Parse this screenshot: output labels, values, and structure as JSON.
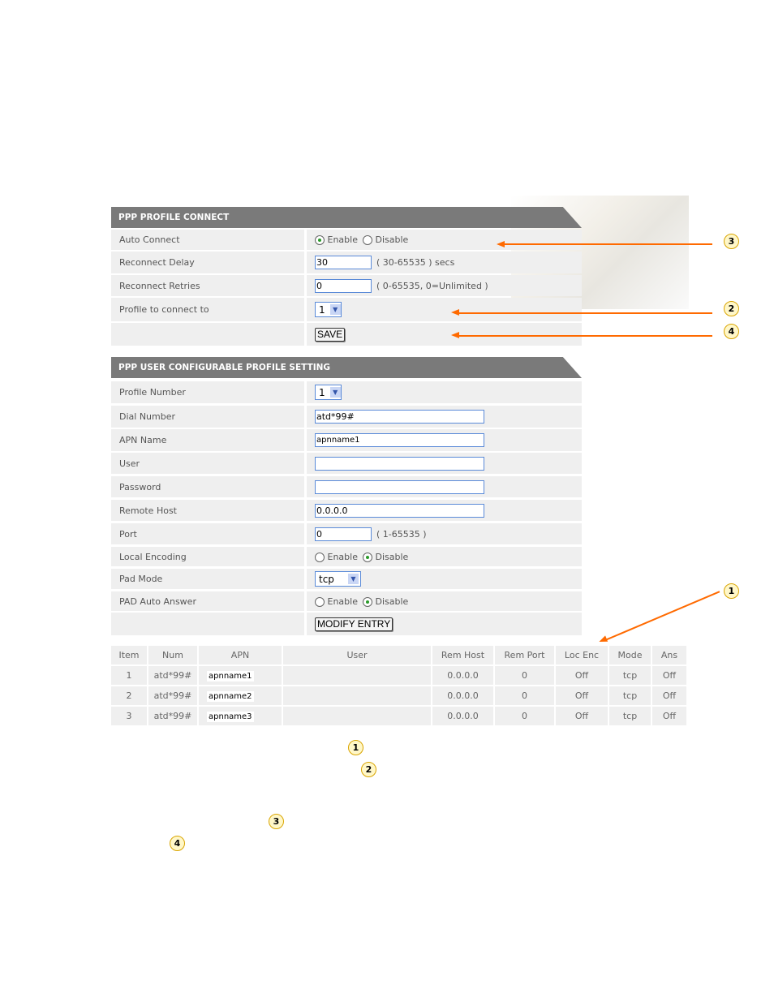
{
  "profile_connect": {
    "title": "PPP PROFILE CONNECT",
    "auto_connect": {
      "label": "Auto Connect",
      "enable": "Enable",
      "disable": "Disable",
      "selected": "Enable"
    },
    "reconnect_delay": {
      "label": "Reconnect Delay",
      "value": "30",
      "hint": "( 30-65535 ) secs"
    },
    "reconnect_retries": {
      "label": "Reconnect Retries",
      "value": "0",
      "hint": "( 0-65535, 0=Unlimited )"
    },
    "profile": {
      "label": "Profile to connect to",
      "value": "1"
    },
    "save": "SAVE"
  },
  "user_profile": {
    "title": "PPP USER CONFIGURABLE PROFILE SETTING",
    "profile_number": {
      "label": "Profile Number",
      "value": "1"
    },
    "dial_number": {
      "label": "Dial Number",
      "value": "atd*99#"
    },
    "apn_name": {
      "label": "APN Name",
      "value": "apnname1"
    },
    "user": {
      "label": "User",
      "value": ""
    },
    "password": {
      "label": "Password",
      "value": ""
    },
    "remote_host": {
      "label": "Remote Host",
      "value": "0.0.0.0"
    },
    "port": {
      "label": "Port",
      "value": "0",
      "hint": "( 1-65535 )"
    },
    "local_encoding": {
      "label": "Local Encoding",
      "enable": "Enable",
      "disable": "Disable",
      "selected": "Disable"
    },
    "pad_mode": {
      "label": "Pad Mode",
      "value": "tcp"
    },
    "pad_auto_answer": {
      "label": "PAD Auto Answer",
      "enable": "Enable",
      "disable": "Disable",
      "selected": "Disable"
    },
    "modify": "MODIFY ENTRY"
  },
  "table": {
    "headers": [
      "Item",
      "Num",
      "APN",
      "User",
      "Rem Host",
      "Rem Port",
      "Loc Enc",
      "Mode",
      "Ans"
    ],
    "rows": [
      [
        "1",
        "atd*99#",
        "apnname1",
        "",
        "0.0.0.0",
        "0",
        "Off",
        "tcp",
        "Off"
      ],
      [
        "2",
        "atd*99#",
        "apnname2",
        "",
        "0.0.0.0",
        "0",
        "Off",
        "tcp",
        "Off"
      ],
      [
        "3",
        "atd*99#",
        "apnname3",
        "",
        "0.0.0.0",
        "0",
        "Off",
        "tcp",
        "Off"
      ]
    ]
  },
  "callouts": [
    "1",
    "2",
    "3",
    "4"
  ],
  "colors": {
    "arrow": "#ff6a00",
    "header": "#7a7a7a",
    "row": "#efefef"
  }
}
